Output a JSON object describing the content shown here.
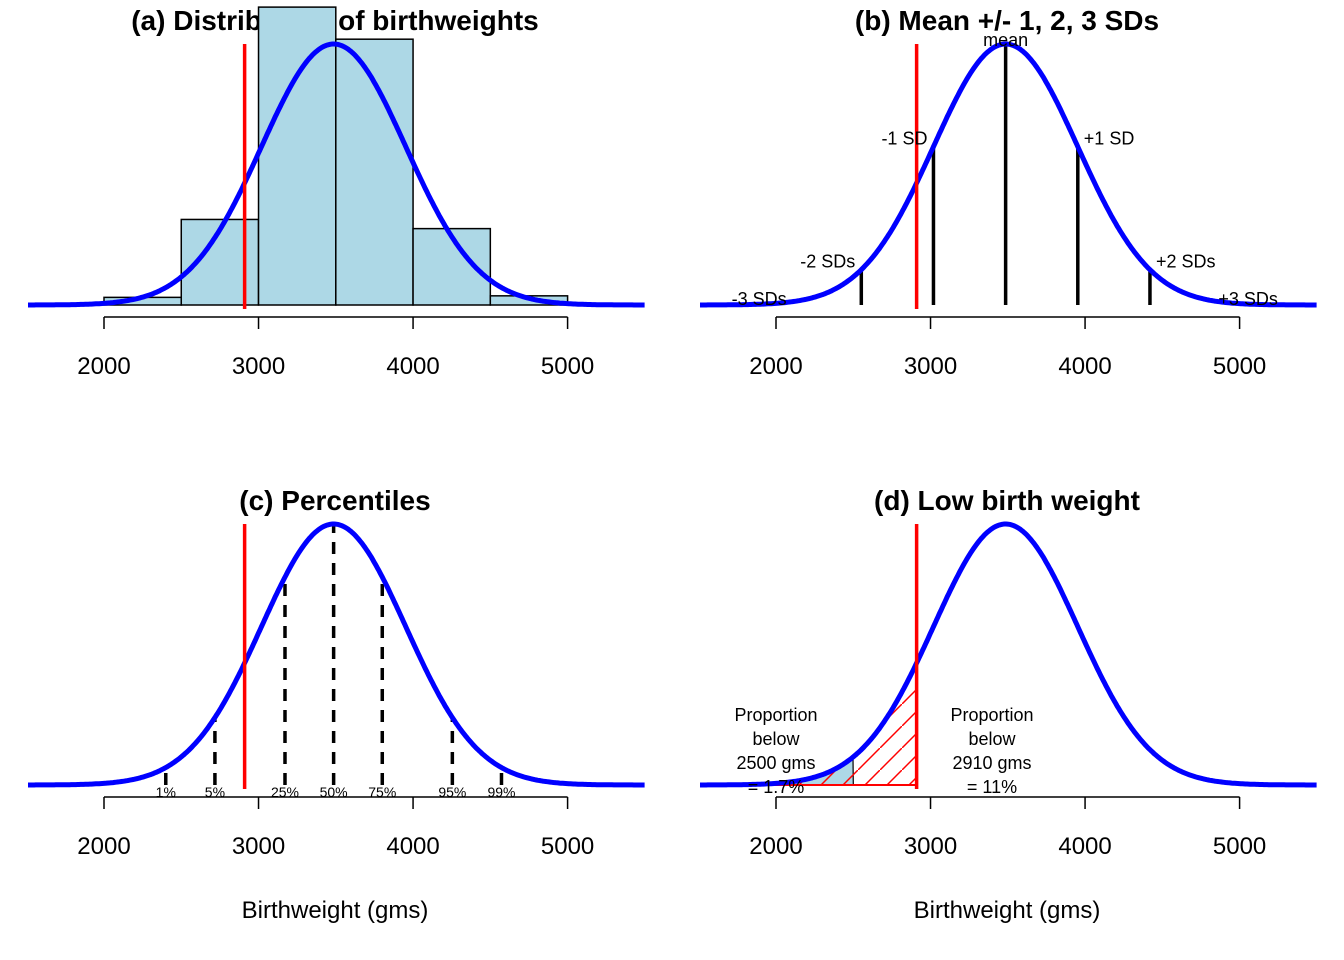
{
  "chart_data": [
    {
      "type": "histogram",
      "title": "(a) Distribution of birthweights",
      "xlabel": "",
      "xlim": [
        1500,
        5500
      ],
      "xticks": [
        "2000",
        "3000",
        "4000",
        "5000"
      ],
      "bins": [
        {
          "from": 2000,
          "to": 2500,
          "density": 2.5e-05
        },
        {
          "from": 2500,
          "to": 3000,
          "density": 0.00028
        },
        {
          "from": 3000,
          "to": 3500,
          "density": 0.000975
        },
        {
          "from": 3500,
          "to": 4000,
          "density": 0.00087
        },
        {
          "from": 4000,
          "to": 4500,
          "density": 0.00025
        },
        {
          "from": 4500,
          "to": 5000,
          "density": 3e-05
        }
      ],
      "normal_curve": {
        "mean": 3486,
        "sd": 467,
        "color": "#0000ff"
      },
      "reference_line": {
        "x": 2910,
        "color": "#ff0000"
      },
      "bar_color": "#add8e6"
    },
    {
      "type": "line",
      "title": "(b) Mean +/- 1, 2, 3 SDs",
      "xlabel": "",
      "xlim": [
        1500,
        5500
      ],
      "xticks": [
        "2000",
        "3000",
        "4000",
        "5000"
      ],
      "normal_curve": {
        "mean": 3486,
        "sd": 467,
        "color": "#0000ff"
      },
      "reference_line": {
        "x": 2910,
        "color": "#ff0000"
      },
      "markers": [
        {
          "label": "-3 SDs",
          "k": -3
        },
        {
          "label": "-2 SDs",
          "k": -2
        },
        {
          "label": "-1 SD",
          "k": -1
        },
        {
          "label": "mean",
          "k": 0
        },
        {
          "label": "+1 SD",
          "k": 1
        },
        {
          "label": "+2 SDs",
          "k": 2
        },
        {
          "label": "+3 SDs",
          "k": 3
        }
      ]
    },
    {
      "type": "line",
      "title": "(c) Percentiles",
      "xlabel": "Birthweight (gms)",
      "xlim": [
        1500,
        5500
      ],
      "xticks": [
        "2000",
        "3000",
        "4000",
        "5000"
      ],
      "normal_curve": {
        "mean": 3486,
        "sd": 467,
        "color": "#0000ff"
      },
      "reference_line": {
        "x": 2910,
        "color": "#ff0000"
      },
      "percentiles": [
        {
          "label": "1%",
          "z": -2.326
        },
        {
          "label": "5%",
          "z": -1.645
        },
        {
          "label": "25%",
          "z": -0.674
        },
        {
          "label": "50%",
          "z": 0
        },
        {
          "label": "75%",
          "z": 0.674
        },
        {
          "label": "95%",
          "z": 1.645
        },
        {
          "label": "99%",
          "z": 2.326
        }
      ]
    },
    {
      "type": "area",
      "title": "(d) Low birth weight",
      "xlabel": "Birthweight (gms)",
      "xlim": [
        1500,
        5500
      ],
      "xticks": [
        "2000",
        "3000",
        "4000",
        "5000"
      ],
      "normal_curve": {
        "mean": 3486,
        "sd": 467,
        "color": "#0000ff"
      },
      "reference_line": {
        "x": 2910,
        "color": "#ff0000"
      },
      "shaded_below": 2500,
      "shaded_color": "#add8e6",
      "hatched_below": 2910,
      "hatch_color": "#ff0000",
      "annotations": [
        [
          "Proportion",
          "below",
          "2500 gms",
          "= 1.7%"
        ],
        [
          "Proportion",
          "below",
          "2910 gms",
          "= 11%"
        ]
      ]
    }
  ]
}
